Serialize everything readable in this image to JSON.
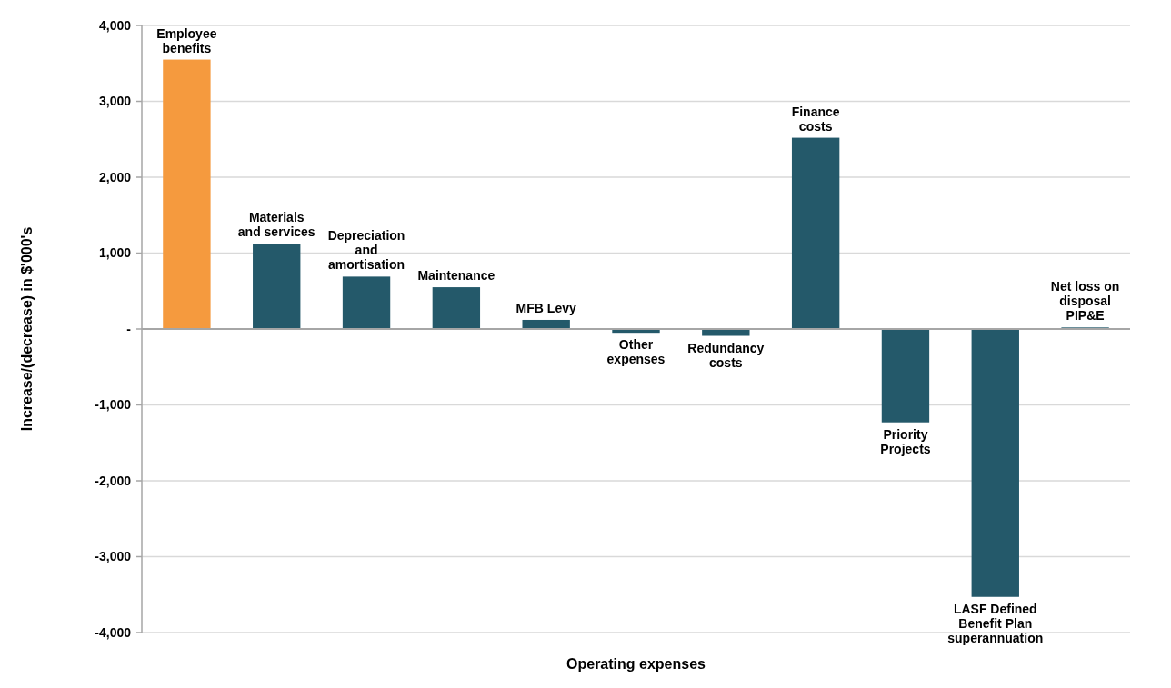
{
  "chart_data": {
    "type": "bar",
    "xlabel": "Operating expenses",
    "ylabel": "Increase/(decrease) in $'000's",
    "categories": [
      "Employee benefits",
      "Materials and services",
      "Depreciation and amortisation",
      "Maintenance",
      "MFB Levy",
      "Other expenses",
      "Redundancy costs",
      "Finance costs",
      "Priority Projects",
      "LASF Defined Benefit Plan superannuation",
      "Net loss on disposal PIP&E"
    ],
    "values": [
      3550,
      1120,
      690,
      550,
      120,
      -50,
      -90,
      2520,
      -1230,
      -3530,
      20
    ],
    "colors": [
      "#f59a3e",
      "#24596a",
      "#24596a",
      "#24596a",
      "#24596a",
      "#24596a",
      "#24596a",
      "#24596a",
      "#24596a",
      "#24596a",
      "#24596a"
    ],
    "ylim": [
      -4000,
      4000
    ],
    "yticks": [
      {
        "value": -4000,
        "label": "-4,000"
      },
      {
        "value": -3000,
        "label": "-3,000"
      },
      {
        "value": -2000,
        "label": "-2,000"
      },
      {
        "value": -1000,
        "label": "-1,000"
      },
      {
        "value": 0,
        "label": "-"
      },
      {
        "value": 1000,
        "label": "1,000"
      },
      {
        "value": 2000,
        "label": "2,000"
      },
      {
        "value": 3000,
        "label": "3,000"
      },
      {
        "value": 4000,
        "label": "4,000"
      }
    ],
    "grid": "y",
    "tick_labels": "y"
  }
}
